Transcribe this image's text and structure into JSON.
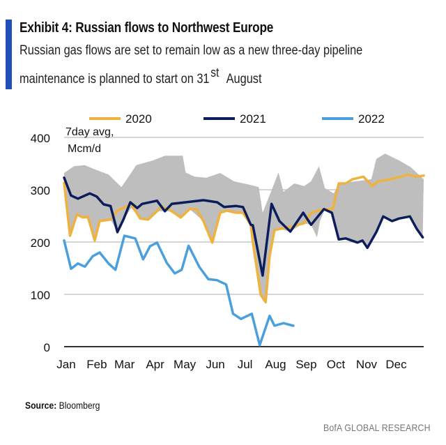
{
  "header": {
    "title": "Exhibit 4: Russian flows to Northwest Europe",
    "subtitle_line1": "Russian gas flows are set to remain low as a new three-day pipeline",
    "subtitle_line2_a": "maintenance is planned to start on 31",
    "subtitle_line2_sup": "st",
    "subtitle_line2_b": "August"
  },
  "footer": {
    "source_label": "Source:",
    "source_value": "Bloomberg",
    "brand": "BofA GLOBAL RESEARCH"
  },
  "colors": {
    "accent_bar": "#1F4FB8",
    "series_2020": "#F0B23E",
    "series_2021": "#0B1E5B",
    "series_2022": "#4A9FDC",
    "range_band": "#BEBEBE"
  },
  "chart_data": {
    "type": "line",
    "title": "",
    "ylabel_line1": "7day avg,",
    "ylabel_line2": "Mcm/d",
    "xlabel": "",
    "ylim": [
      0,
      400
    ],
    "yticks": [
      0,
      100,
      200,
      300,
      400
    ],
    "xtick_labels": [
      "Jan",
      "Feb",
      "Mar",
      "Apr",
      "May",
      "Jun",
      "Jul",
      "Aug",
      "Sep",
      "Oct",
      "Nov",
      "Dec"
    ],
    "grid": "horizontal",
    "legend_placement": "top",
    "band": {
      "upper": {
        "x": [
          "01-01",
          "01-11",
          "01-22",
          "02-01",
          "02-15",
          "02-28",
          "03-08",
          "03-15",
          "04-01",
          "04-13",
          "05-01",
          "05-04",
          "05-13",
          "05-25",
          "06-08",
          "06-22",
          "07-09",
          "07-17",
          "07-21",
          "07-30",
          "08-06",
          "08-11",
          "08-22",
          "09-01",
          "09-08",
          "09-16",
          "09-22",
          "10-01",
          "10-06",
          "11-08",
          "11-13",
          "11-22",
          "12-06",
          "12-18",
          "12-31"
        ],
        "values": [
          332,
          345,
          347,
          339,
          329,
          305,
          327,
          347,
          356,
          365,
          365,
          333,
          325,
          323,
          332,
          316,
          309,
          305,
          256,
          299,
          333,
          296,
          312,
          307,
          316,
          345,
          303,
          293,
          312,
          320,
          359,
          369,
          356,
          343,
          320
        ]
      },
      "lower": {
        "x": [
          "01-01",
          "01-07",
          "01-14",
          "01-20",
          "01-25",
          "02-01",
          "02-06",
          "02-17",
          "02-24",
          "03-02",
          "03-10",
          "03-19",
          "03-27",
          "04-05",
          "04-17",
          "04-29",
          "05-08",
          "05-22",
          "05-31",
          "06-08",
          "06-15",
          "06-24",
          "07-01",
          "07-09",
          "07-11",
          "07-19",
          "07-24",
          "07-28",
          "08-02",
          "08-07",
          "08-18",
          "08-31",
          "09-08",
          "09-14",
          "09-17",
          "09-22",
          "09-30",
          "10-06",
          "10-13",
          "10-25",
          "10-30",
          "11-04",
          "11-13",
          "11-20",
          "11-29",
          "12-06",
          "12-17",
          "12-24",
          "12-30"
        ],
        "values": [
          303,
          212,
          250,
          245,
          245,
          203,
          238,
          243,
          219,
          243,
          265,
          245,
          243,
          259,
          259,
          247,
          263,
          240,
          199,
          256,
          260,
          256,
          256,
          233,
          200,
          99,
          85,
          173,
          223,
          225,
          220,
          236,
          233,
          209,
          240,
          263,
          256,
          205,
          207,
          199,
          203,
          189,
          219,
          249,
          240,
          245,
          249,
          225,
          209
        ]
      }
    },
    "series": [
      {
        "name": "2020",
        "x": [
          "01-01",
          "01-07",
          "01-14",
          "01-20",
          "01-25",
          "02-01",
          "02-06",
          "02-17",
          "02-24",
          "03-10",
          "03-19",
          "03-27",
          "04-05",
          "04-09",
          "04-17",
          "04-29",
          "05-08",
          "05-15",
          "05-22",
          "05-31",
          "06-08",
          "06-15",
          "06-24",
          "07-01",
          "07-09",
          "07-11",
          "07-19",
          "07-24",
          "07-28",
          "08-02",
          "08-07",
          "08-18",
          "09-01",
          "09-08",
          "09-22",
          "09-30",
          "10-06",
          "10-13",
          "10-20",
          "10-31",
          "11-09",
          "11-15",
          "11-27",
          "12-16",
          "12-23",
          "12-31"
        ],
        "values": [
          313,
          212,
          253,
          247,
          249,
          203,
          240,
          243,
          260,
          272,
          245,
          243,
          259,
          267,
          263,
          247,
          263,
          263,
          240,
          199,
          256,
          260,
          256,
          256,
          233,
          200,
          99,
          85,
          173,
          223,
          225,
          229,
          236,
          256,
          263,
          263,
          312,
          312,
          320,
          325,
          307,
          316,
          320,
          329,
          325,
          327
        ]
      },
      {
        "name": "2021",
        "x": [
          "01-01",
          "01-08",
          "01-15",
          "01-27",
          "02-03",
          "02-10",
          "02-17",
          "02-24",
          "03-02",
          "03-09",
          "03-16",
          "03-21",
          "04-05",
          "04-13",
          "04-20",
          "05-04",
          "05-22",
          "06-05",
          "06-12",
          "06-24",
          "07-01",
          "07-09",
          "07-11",
          "07-21",
          "07-30",
          "08-07",
          "08-18",
          "08-31",
          "09-08",
          "09-21",
          "09-29",
          "10-06",
          "10-13",
          "10-25",
          "10-30",
          "11-04",
          "11-13",
          "11-20",
          "11-29",
          "12-06",
          "12-17",
          "12-24",
          "12-30"
        ],
        "values": [
          323,
          289,
          283,
          293,
          287,
          272,
          269,
          219,
          243,
          276,
          265,
          273,
          279,
          259,
          273,
          276,
          280,
          276,
          267,
          269,
          267,
          233,
          232,
          136,
          273,
          240,
          220,
          256,
          233,
          263,
          256,
          205,
          207,
          199,
          203,
          189,
          219,
          249,
          240,
          245,
          249,
          225,
          209
        ]
      },
      {
        "name": "2022",
        "x": [
          "01-01",
          "01-08",
          "01-15",
          "01-22",
          "01-30",
          "02-06",
          "02-15",
          "02-22",
          "03-03",
          "03-14",
          "03-22",
          "03-29",
          "04-05",
          "04-15",
          "04-23",
          "04-30",
          "05-07",
          "05-18",
          "05-27",
          "06-05",
          "06-14",
          "06-21",
          "06-29",
          "07-10",
          "07-18",
          "07-28",
          "08-02",
          "08-11",
          "08-21"
        ],
        "values": [
          203,
          149,
          159,
          153,
          173,
          180,
          159,
          147,
          212,
          207,
          167,
          192,
          199,
          160,
          140,
          147,
          193,
          152,
          129,
          127,
          119,
          63,
          53,
          63,
          3,
          59,
          40,
          45,
          40
        ]
      }
    ]
  }
}
